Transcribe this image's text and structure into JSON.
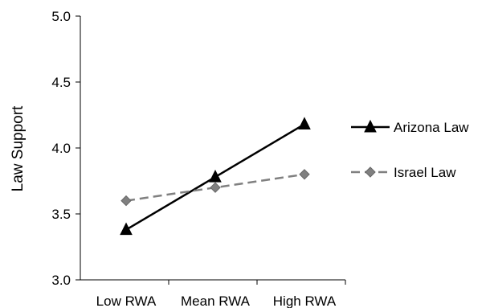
{
  "chart_data": {
    "type": "line",
    "title": "",
    "xlabel": "",
    "ylabel": "Law Support",
    "categories": [
      "Low RWA",
      "Mean RWA",
      "High RWA"
    ],
    "ylim": [
      3.0,
      5.0
    ],
    "yticks": [
      "3.0",
      "3.5",
      "4.0",
      "4.5",
      "5.0"
    ],
    "grid": false,
    "legend_position": "right",
    "series": [
      {
        "name": "Arizona Law",
        "values": [
          3.38,
          3.78,
          4.18
        ],
        "color": "#000000",
        "dash": "solid",
        "marker": "triangle"
      },
      {
        "name": "Israel Law",
        "values": [
          3.6,
          3.7,
          3.8
        ],
        "color": "#808080",
        "dash": "dashed",
        "marker": "diamond"
      }
    ]
  }
}
